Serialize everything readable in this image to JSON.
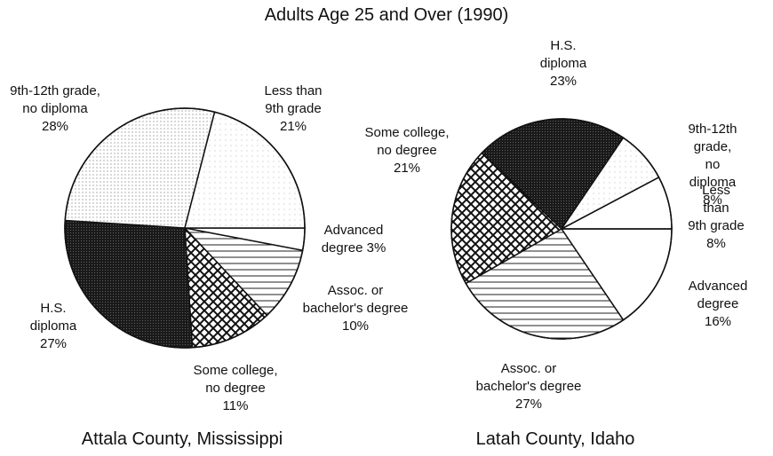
{
  "title": "Adults Age 25 and Over (1990)",
  "chart_data": [
    {
      "type": "pie",
      "subtitle": "Attala County, Mississippi",
      "categories": [
        "Advanced\ndegree",
        "Assoc. or\nbachelor's degree",
        "Some college,\nno degree",
        "H.S.\ndiploma",
        "9th-12th grade,\nno diploma",
        "Less than\n9th grade"
      ],
      "values": [
        3,
        10,
        11,
        27,
        28,
        21
      ],
      "value_labels": [
        "3%",
        "10%",
        "11%",
        "27%",
        "28%",
        "21%"
      ],
      "patterns": [
        "white",
        "hlines",
        "crosshatch",
        "dark",
        "dots",
        "sparse-dots"
      ]
    },
    {
      "type": "pie",
      "subtitle": "Latah County, Idaho",
      "categories": [
        "Advanced\ndegree",
        "Assoc. or\nbachelor's degree",
        "Some college,\nno degree",
        "H.S.\ndiploma",
        "9th-12th grade,\nno diploma",
        "Less than\n9th grade"
      ],
      "values": [
        16,
        27,
        21,
        23,
        8,
        8
      ],
      "value_labels": [
        "16%",
        "27%",
        "21%",
        "23%",
        "8%",
        "8%"
      ],
      "patterns": [
        "white",
        "hlines",
        "crosshatch",
        "dark",
        "sparse-dots",
        "white"
      ]
    }
  ]
}
